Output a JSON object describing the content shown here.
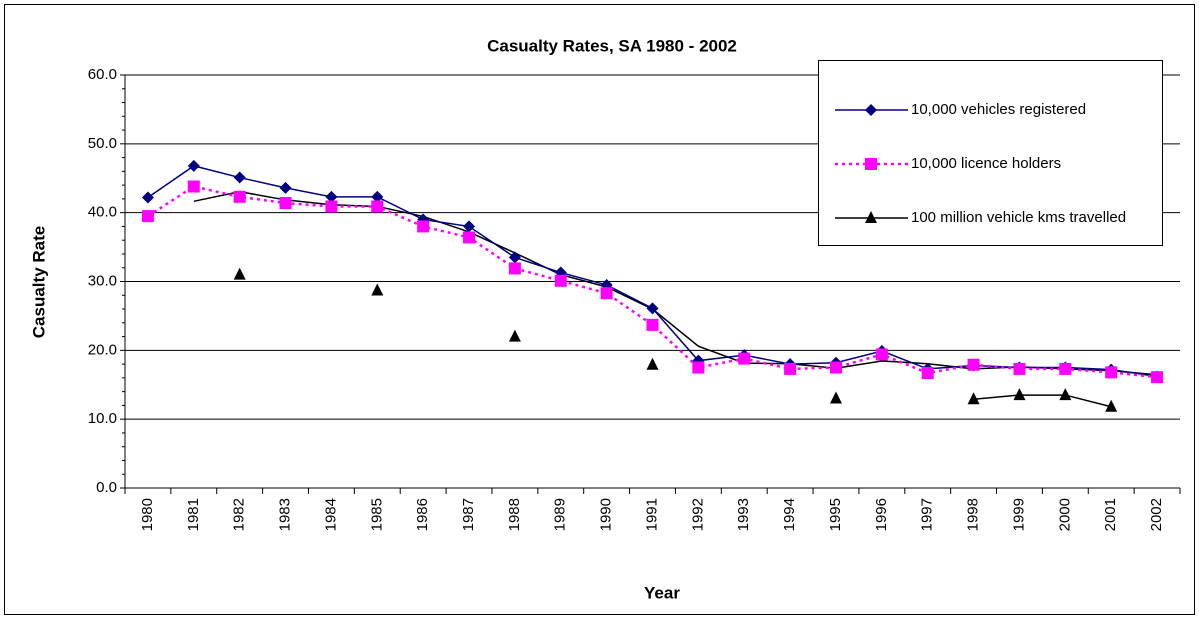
{
  "chart_data": {
    "type": "line",
    "title": "Casualty Rates, SA 1980 - 2002",
    "x_label": "Year",
    "y_label": "Casualty Rate",
    "categories": [
      "1980",
      "1981",
      "1982",
      "1983",
      "1984",
      "1985",
      "1986",
      "1987",
      "1988",
      "1989",
      "1990",
      "1991",
      "1992",
      "1993",
      "1994",
      "1995",
      "1996",
      "1997",
      "1998",
      "1999",
      "2000",
      "2001",
      "2002"
    ],
    "series": [
      {
        "name": "10,000 vehicles registered",
        "color": "#000080",
        "marker": "diamond",
        "line_style": "solid",
        "values": [
          42.2,
          46.8,
          45.1,
          43.6,
          42.3,
          42.3,
          39.0,
          38.0,
          33.5,
          31.3,
          29.5,
          26.1,
          18.5,
          19.3,
          18.0,
          18.2,
          19.9,
          17.3,
          17.8,
          17.5,
          17.5,
          17.2,
          16.2
        ]
      },
      {
        "name": "10,000 licence holders",
        "color": "#ff00ff",
        "marker": "square",
        "line_style": "dotted",
        "values": [
          39.5,
          43.8,
          42.3,
          41.4,
          40.9,
          40.9,
          38.0,
          36.4,
          31.9,
          30.1,
          28.3,
          23.7,
          17.5,
          18.8,
          17.3,
          17.5,
          19.4,
          16.7,
          17.9,
          17.3,
          17.3,
          16.8,
          16.1
        ]
      },
      {
        "name": "100 million vehicle kms travelled",
        "color": "#000000",
        "marker": "triangle",
        "line_style": "solid",
        "values": [
          null,
          null,
          31.0,
          null,
          null,
          28.7,
          null,
          null,
          22.0,
          null,
          null,
          17.9,
          null,
          null,
          null,
          13.0,
          null,
          null,
          12.9,
          13.5,
          13.5,
          11.8,
          null
        ]
      }
    ],
    "trendline": {
      "series": 1,
      "kind": "moving_average",
      "period": 2,
      "color": "#000000"
    },
    "ylim": [
      0,
      60
    ],
    "yticks": [
      {
        "value": 0,
        "label": "0.0"
      },
      {
        "value": 10,
        "label": "10.0"
      },
      {
        "value": 20,
        "label": "20.0"
      },
      {
        "value": 30,
        "label": "30.0"
      },
      {
        "value": 40,
        "label": "40.0"
      },
      {
        "value": 50,
        "label": "50.0"
      },
      {
        "value": 60,
        "label": "60.0"
      }
    ],
    "grid": true,
    "legend": "top-right"
  }
}
